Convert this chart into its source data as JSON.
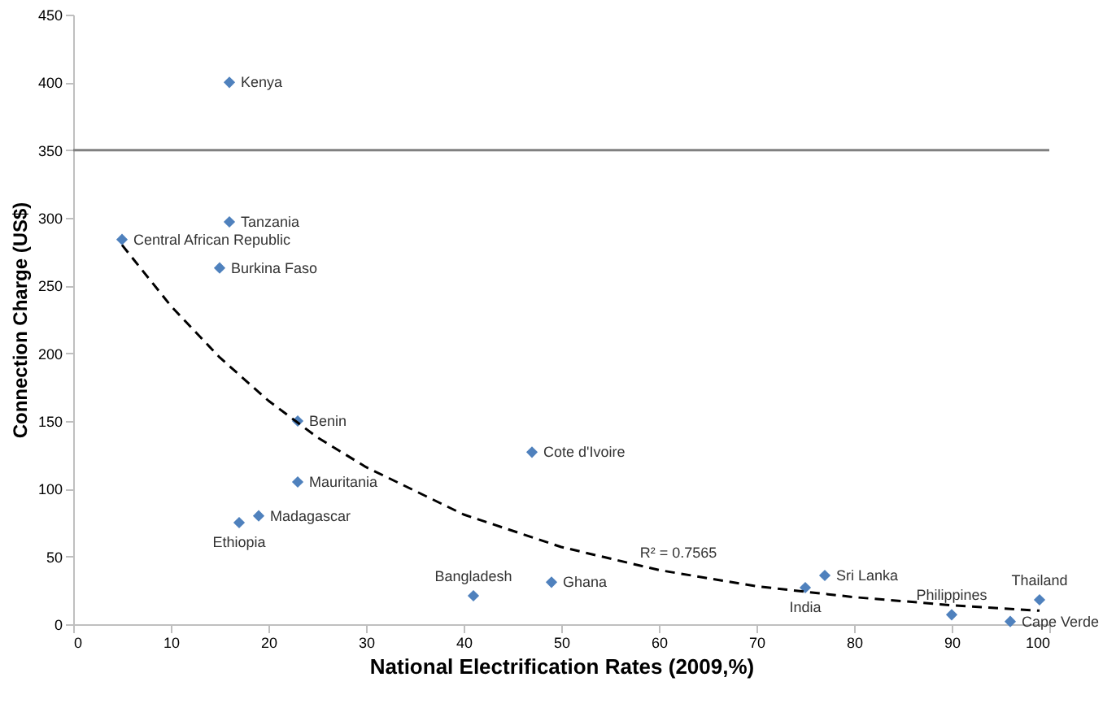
{
  "chart_data": {
    "type": "scatter",
    "xlabel": "National Electrification Rates (2009,%)",
    "ylabel": "Connection Charge (US$)",
    "xlim": [
      0,
      100
    ],
    "xticks": [
      0,
      10,
      20,
      30,
      40,
      50,
      60,
      70,
      80,
      90,
      100
    ],
    "ylim": [
      0,
      450
    ],
    "yticks": [
      0,
      50,
      100,
      150,
      200,
      250,
      300,
      350,
      400,
      450
    ],
    "grid": false,
    "marker": "diamond",
    "series": [
      {
        "color": "#4f81bd",
        "x": [
          16,
          16,
          5,
          15,
          23,
          23,
          19,
          17,
          41,
          49,
          47,
          75,
          77,
          90,
          96,
          99
        ],
        "values": [
          400,
          297,
          284,
          263,
          150,
          105,
          80,
          75,
          21,
          31,
          127,
          27,
          36,
          7,
          2,
          18
        ],
        "value_labels": [
          "Kenya",
          "Tanzania",
          "Central African Republic",
          "Burkina Faso",
          "Benin",
          "Mauritania",
          "Madagascar",
          "Ethiopia",
          "Bangladesh",
          "Ghana",
          "Cote d'Ivoire",
          "India",
          "Sri Lanka",
          "Philippines",
          "Cape Verde",
          "Thailand"
        ]
      },
      {
        "type": "line",
        "color": "#000000",
        "line_style": "dashed",
        "marker": "none",
        "x": [
          5,
          10,
          15,
          20,
          25,
          30,
          40,
          50,
          60,
          70,
          80,
          90,
          99
        ],
        "values": [
          280,
          235,
          197,
          165,
          138,
          116,
          81,
          57,
          40,
          28,
          20,
          14,
          10
        ]
      }
    ],
    "ref_lines": [
      {
        "axis": "y",
        "value": 350,
        "color": "#808080"
      }
    ],
    "annotations": [
      {
        "text": "R² = 0.7565",
        "x": 62,
        "y": 42
      }
    ]
  }
}
